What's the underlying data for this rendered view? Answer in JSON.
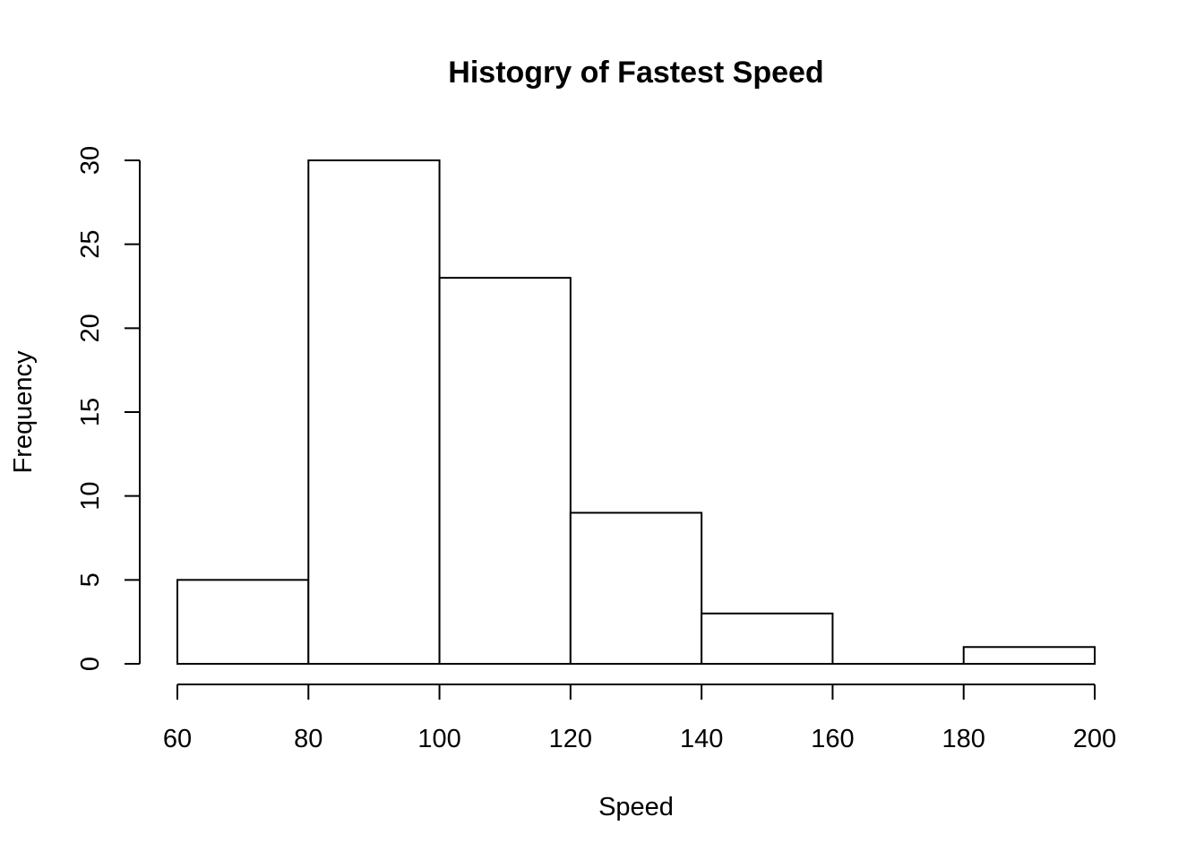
{
  "chart_data": {
    "type": "bar",
    "title": "Histogry of Fastest Speed",
    "xlabel": "Speed",
    "ylabel": "Frequency",
    "bins": [
      {
        "from": 60,
        "to": 80,
        "count": 5
      },
      {
        "from": 80,
        "to": 100,
        "count": 30
      },
      {
        "from": 100,
        "to": 120,
        "count": 23
      },
      {
        "from": 120,
        "to": 140,
        "count": 9
      },
      {
        "from": 140,
        "to": 160,
        "count": 3
      },
      {
        "from": 160,
        "to": 180,
        "count": 0
      },
      {
        "from": 180,
        "to": 200,
        "count": 1
      }
    ],
    "x_ticks": [
      "60",
      "80",
      "100",
      "120",
      "140",
      "160",
      "180",
      "200"
    ],
    "y_ticks": [
      "0",
      "5",
      "10",
      "15",
      "20",
      "25",
      "30"
    ],
    "xlim": [
      60,
      200
    ],
    "ylim": [
      0,
      30
    ],
    "grid": false,
    "bar_fill": "#ffffff",
    "bar_stroke": "#000000"
  }
}
